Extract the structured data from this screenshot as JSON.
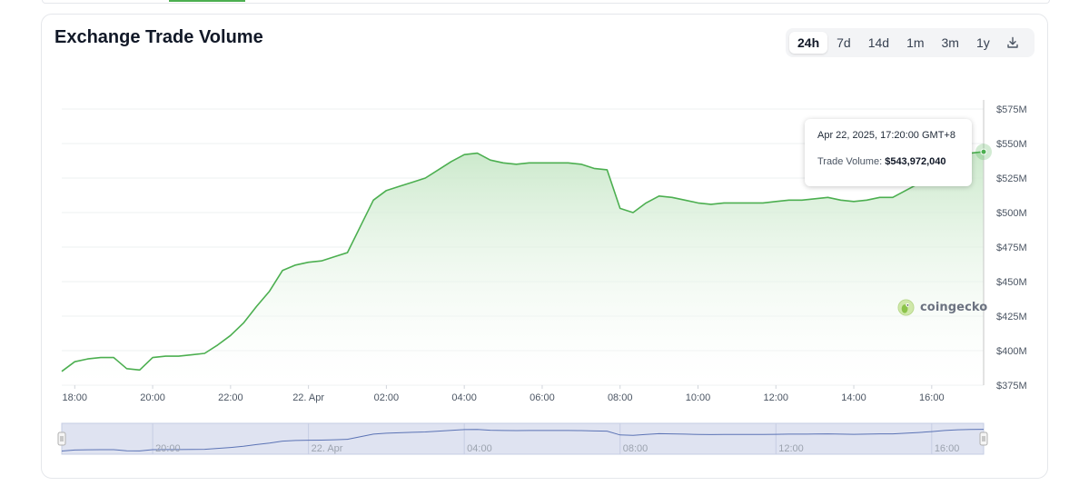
{
  "card": {
    "title": "Exchange Trade Volume"
  },
  "range_buttons": {
    "items": [
      "24h",
      "7d",
      "14d",
      "1m",
      "3m",
      "1y"
    ],
    "selected": "24h",
    "download_icon": "download-icon"
  },
  "tooltip": {
    "date": "Apr 22, 2025, 17:20:00 GMT+8",
    "label": "Trade Volume:",
    "value": "$543,972,040"
  },
  "watermark": {
    "text": "coingecko",
    "icon": "gecko-icon"
  },
  "colors": {
    "line": "#4caf50",
    "fill_top": "#c9e8c9",
    "active_tab": "#4caf50",
    "navigator_fill": "#dfe3f1",
    "navigator_line": "#5b73b5"
  },
  "chart_data": {
    "type": "area",
    "title": "Exchange Trade Volume",
    "xlabel": "",
    "ylabel": "",
    "x_start": "Apr 21, 2025, 17:40",
    "x_end": "Apr 22, 2025, 17:20",
    "x_tick_labels": [
      "18:00",
      "20:00",
      "22:00",
      "22. Apr",
      "02:00",
      "04:00",
      "06:00",
      "08:00",
      "10:00",
      "12:00",
      "14:00",
      "16:00"
    ],
    "y_tick_labels": [
      "$575M",
      "$550M",
      "$525M",
      "$500M",
      "$475M",
      "$450M",
      "$425M",
      "$400M",
      "$375M"
    ],
    "ylim": [
      375,
      575
    ],
    "y_unit": "$M",
    "grid": true,
    "legend": "none",
    "series": [
      {
        "name": "Trade Volume",
        "x": [
          "Apr 21 17:40",
          "Apr 21 18:00",
          "Apr 21 18:20",
          "Apr 21 18:40",
          "Apr 21 19:00",
          "Apr 21 19:20",
          "Apr 21 19:40",
          "Apr 21 20:00",
          "Apr 21 20:20",
          "Apr 21 20:40",
          "Apr 21 21:00",
          "Apr 21 21:20",
          "Apr 21 21:40",
          "Apr 21 22:00",
          "Apr 21 22:20",
          "Apr 21 22:40",
          "Apr 21 23:00",
          "Apr 21 23:20",
          "Apr 21 23:40",
          "Apr 22 00:00",
          "Apr 22 00:20",
          "Apr 22 00:40",
          "Apr 22 01:00",
          "Apr 22 01:20",
          "Apr 22 01:40",
          "Apr 22 02:00",
          "Apr 22 02:20",
          "Apr 22 02:40",
          "Apr 22 03:00",
          "Apr 22 03:20",
          "Apr 22 03:40",
          "Apr 22 04:00",
          "Apr 22 04:20",
          "Apr 22 04:40",
          "Apr 22 05:00",
          "Apr 22 05:20",
          "Apr 22 05:40",
          "Apr 22 06:00",
          "Apr 22 06:20",
          "Apr 22 06:40",
          "Apr 22 07:00",
          "Apr 22 07:20",
          "Apr 22 07:40",
          "Apr 22 08:00",
          "Apr 22 08:20",
          "Apr 22 08:40",
          "Apr 22 09:00",
          "Apr 22 09:20",
          "Apr 22 09:40",
          "Apr 22 10:00",
          "Apr 22 10:20",
          "Apr 22 10:40",
          "Apr 22 11:00",
          "Apr 22 11:20",
          "Apr 22 11:40",
          "Apr 22 12:00",
          "Apr 22 12:20",
          "Apr 22 12:40",
          "Apr 22 13:00",
          "Apr 22 13:20",
          "Apr 22 13:40",
          "Apr 22 14:00",
          "Apr 22 14:20",
          "Apr 22 14:40",
          "Apr 22 15:00",
          "Apr 22 15:20",
          "Apr 22 15:40",
          "Apr 22 16:00",
          "Apr 22 16:20",
          "Apr 22 16:40",
          "Apr 22 17:00",
          "Apr 22 17:20"
        ],
        "values": [
          385,
          392,
          394,
          395,
          395,
          387,
          386,
          395,
          396,
          396,
          397,
          398,
          404,
          411,
          420,
          432,
          443,
          458,
          462,
          464,
          465,
          468,
          471,
          490,
          509,
          516,
          519,
          522,
          525,
          531,
          537,
          542,
          543,
          538,
          536,
          535,
          536,
          536,
          536,
          536,
          535,
          532,
          531,
          503,
          500,
          507,
          512,
          511,
          509,
          507,
          506,
          507,
          507,
          507,
          507,
          508,
          509,
          509,
          510,
          511,
          509,
          508,
          509,
          511,
          511,
          516,
          521,
          528,
          536,
          541,
          543,
          544
        ]
      }
    ],
    "tooltip_point": {
      "x": "Apr 22, 2025, 17:20:00 GMT+8",
      "y": 543.97204
    },
    "navigator": {
      "tick_labels": [
        "20:00",
        "22. Apr",
        "04:00",
        "08:00",
        "12:00",
        "16:00"
      ]
    }
  }
}
